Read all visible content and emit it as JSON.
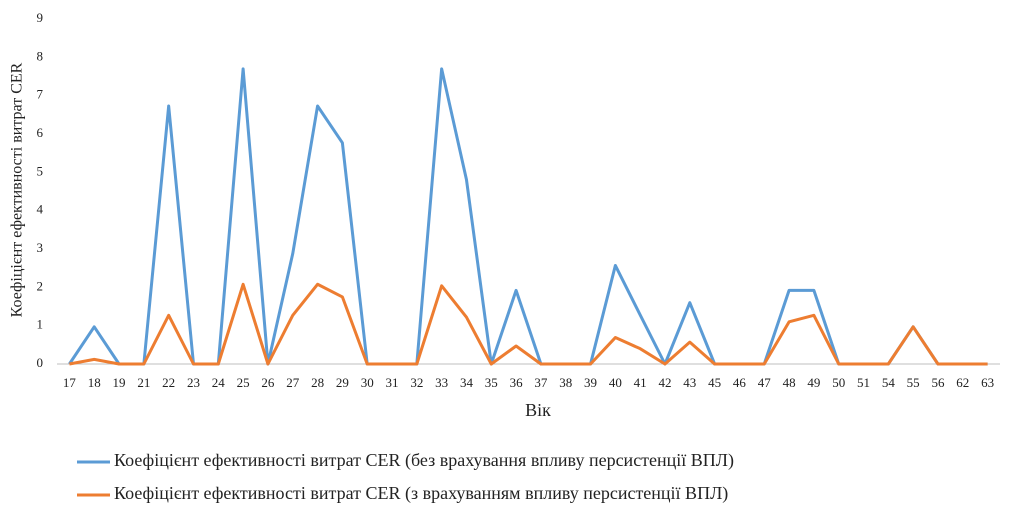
{
  "chart_data": {
    "type": "line",
    "x_label": "Вік",
    "y_label": "Коефіцієнт ефективності витрат CER",
    "categories": [
      "17",
      "18",
      "19",
      "21",
      "22",
      "23",
      "24",
      "25",
      "26",
      "27",
      "28",
      "29",
      "30",
      "31",
      "32",
      "33",
      "34",
      "35",
      "36",
      "37",
      "38",
      "39",
      "40",
      "41",
      "42",
      "43",
      "45",
      "46",
      "47",
      "48",
      "49",
      "50",
      "51",
      "54",
      "55",
      "56",
      "62",
      "63"
    ],
    "series": [
      {
        "name": "Коефіцієнт ефективності витрат CER (без врахування впливу персистенції ВПЛ)",
        "color": "#5b9bd5",
        "values": [
          0,
          0.97,
          0,
          0,
          6.73,
          0,
          0,
          7.7,
          0,
          2.88,
          6.73,
          5.77,
          0,
          0,
          0,
          7.7,
          4.81,
          0,
          1.92,
          0,
          0,
          0,
          2.57,
          1.28,
          0,
          1.6,
          0,
          0,
          0,
          1.92,
          1.92,
          0,
          0,
          0,
          0.97,
          0,
          0,
          0
        ]
      },
      {
        "name": "Коефіцієнт ефективності витрат CER (з врахуванням впливу персистенції ВПЛ)",
        "color": "#ed7d31",
        "values": [
          0,
          0.12,
          0,
          0,
          1.27,
          0,
          0,
          2.08,
          0,
          1.27,
          2.08,
          1.75,
          0,
          0,
          0,
          2.04,
          1.22,
          0,
          0.47,
          0,
          0,
          0,
          0.69,
          0.4,
          0,
          0.57,
          0,
          0,
          0,
          1.1,
          1.27,
          0,
          0,
          0,
          0.97,
          0,
          0,
          0
        ]
      }
    ],
    "ylim": [
      0,
      9
    ],
    "yticks": [
      0,
      1,
      2,
      3,
      4,
      5,
      6,
      7,
      8,
      9
    ],
    "grid": false,
    "legend": "bottom"
  }
}
